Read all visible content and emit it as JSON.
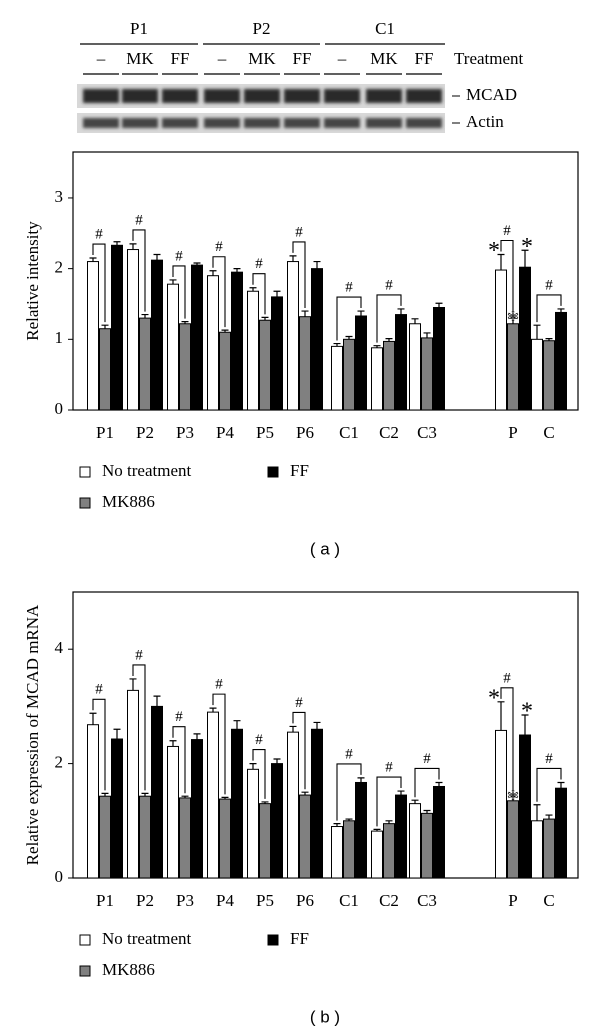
{
  "blot": {
    "groups": [
      "P1",
      "P2",
      "C1"
    ],
    "lanes": [
      "–",
      "MK",
      "FF"
    ],
    "treatment_label": "Treatment",
    "bands": [
      "MCAD",
      "Actin"
    ]
  },
  "chart_data": [
    {
      "type": "bar",
      "panel_label": "( a )",
      "y_label": "Relative intensity",
      "categories": [
        "P1",
        "P2",
        "P3",
        "P4",
        "P5",
        "P6",
        "C1",
        "C2",
        "C3",
        "P",
        "C"
      ],
      "series": [
        {
          "name": "No treatment",
          "color": "#ffffff",
          "values": [
            2.1,
            2.27,
            1.78,
            1.9,
            1.68,
            2.1,
            0.9,
            0.88,
            1.22,
            1.98,
            1.0
          ],
          "errors": [
            0.05,
            0.08,
            0.06,
            0.07,
            0.05,
            0.08,
            0.04,
            0.03,
            0.07,
            0.22,
            0.2
          ]
        },
        {
          "name": "MK886",
          "color": "#808080",
          "values": [
            1.15,
            1.3,
            1.22,
            1.1,
            1.27,
            1.32,
            1.0,
            0.97,
            1.02,
            1.22,
            0.98
          ],
          "errors": [
            0.05,
            0.05,
            0.03,
            0.03,
            0.04,
            0.08,
            0.04,
            0.04,
            0.07,
            0.08,
            0.03
          ]
        },
        {
          "name": "FF",
          "color": "#000000",
          "values": [
            2.33,
            2.12,
            2.05,
            1.95,
            1.6,
            2.0,
            1.33,
            1.35,
            1.45,
            2.02,
            1.38
          ],
          "errors": [
            0.05,
            0.08,
            0.03,
            0.05,
            0.08,
            0.1,
            0.07,
            0.08,
            0.06,
            0.24,
            0.05
          ]
        }
      ],
      "ylim": [
        0,
        3.65
      ],
      "yticks": [
        0,
        1,
        2,
        3
      ],
      "bracket_marks": [
        "#",
        "#",
        "#",
        "#",
        "#",
        "#",
        "#",
        "#",
        null,
        "#",
        "#"
      ],
      "star_marks": [
        null,
        null,
        null,
        null,
        null,
        null,
        null,
        null,
        null,
        "*",
        null
      ]
    },
    {
      "type": "bar",
      "panel_label": "( b )",
      "y_label": "Relative expression of MCAD mRNA",
      "categories": [
        "P1",
        "P2",
        "P3",
        "P4",
        "P5",
        "P6",
        "C1",
        "C2",
        "C3",
        "P",
        "C"
      ],
      "series": [
        {
          "name": "No treatment",
          "color": "#ffffff",
          "values": [
            2.68,
            3.28,
            2.3,
            2.9,
            1.9,
            2.55,
            0.9,
            0.82,
            1.3,
            2.58,
            1.0
          ],
          "errors": [
            0.2,
            0.2,
            0.1,
            0.07,
            0.1,
            0.1,
            0.05,
            0.03,
            0.06,
            0.5,
            0.28
          ]
        },
        {
          "name": "MK886",
          "color": "#808080",
          "values": [
            1.43,
            1.43,
            1.4,
            1.38,
            1.3,
            1.45,
            1.0,
            0.95,
            1.13,
            1.35,
            1.03
          ],
          "errors": [
            0.05,
            0.05,
            0.03,
            0.03,
            0.03,
            0.05,
            0.03,
            0.05,
            0.05,
            0.07,
            0.07
          ]
        },
        {
          "name": "FF",
          "color": "#000000",
          "values": [
            2.43,
            3.0,
            2.42,
            2.6,
            2.0,
            2.6,
            1.67,
            1.45,
            1.6,
            2.5,
            1.57
          ],
          "errors": [
            0.17,
            0.18,
            0.1,
            0.15,
            0.08,
            0.12,
            0.08,
            0.07,
            0.07,
            0.35,
            0.1
          ]
        }
      ],
      "ylim": [
        0,
        5
      ],
      "yticks": [
        0,
        2,
        4
      ],
      "bracket_marks": [
        "#",
        "#",
        "#",
        "#",
        "#",
        "#",
        "#",
        "#",
        "#",
        "#",
        "#"
      ],
      "star_marks": [
        null,
        null,
        null,
        null,
        null,
        null,
        null,
        null,
        null,
        "*",
        null
      ]
    }
  ]
}
